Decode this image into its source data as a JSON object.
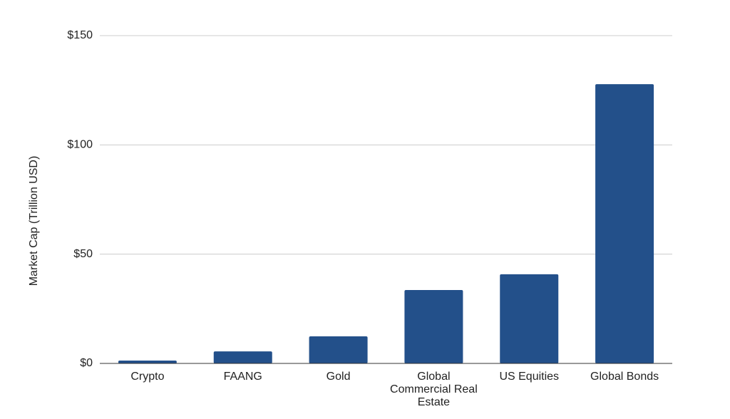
{
  "chart_data": {
    "type": "bar",
    "y_label": "Market Cap (Trillion USD)",
    "categories": [
      "Crypto",
      "FAANG",
      "Gold",
      "Global Commercial Real Estate",
      "US Equities",
      "Global Bonds"
    ],
    "values": [
      1.3,
      5.5,
      12.4,
      33.6,
      40.8,
      127.8
    ],
    "color": "#23508a",
    "ylim": [
      0,
      150
    ],
    "yticks": [
      {
        "value": 0,
        "label": "$0"
      },
      {
        "value": 50,
        "label": "$50"
      },
      {
        "value": 100,
        "label": "$100"
      },
      {
        "value": 150,
        "label": "$150"
      }
    ],
    "grid": true
  }
}
